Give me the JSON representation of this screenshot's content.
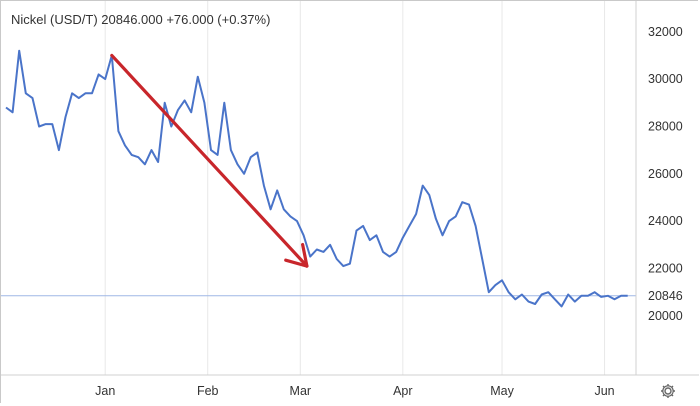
{
  "header": {
    "title": "Nickel (USD/T) 20846.000  +76.000 (+0.37%)"
  },
  "settings_icon": "gear-icon",
  "chart_data": {
    "type": "line",
    "title": "Nickel (USD/T) 20846.000  +76.000 (+0.37%)",
    "xlabel": "",
    "ylabel": "",
    "ylim": [
      17500,
      33300
    ],
    "y_ticks": [
      20000,
      22000,
      24000,
      26000,
      28000,
      30000,
      32000
    ],
    "y_tick_labels": [
      "20000",
      "22000",
      "24000",
      "26000",
      "28000",
      "30000",
      "32000"
    ],
    "x_ticks": [
      {
        "x": 30,
        "label": "Jan"
      },
      {
        "x": 61,
        "label": "Feb"
      },
      {
        "x": 89,
        "label": "Mar"
      },
      {
        "x": 120,
        "label": "Apr"
      },
      {
        "x": 150,
        "label": "May"
      },
      {
        "x": 181,
        "label": "Jun"
      }
    ],
    "xlim": [
      0,
      189
    ],
    "last_value": 20846,
    "last_value_label": "20846",
    "grid": "vertical",
    "colors": {
      "line": "#4a74c9",
      "arrow": "#c8262b",
      "hline": "#9fb7e6",
      "grid": "#e8e8e8"
    },
    "series": [
      {
        "x": [
          0,
          2,
          4,
          6,
          8,
          10,
          12,
          14,
          16,
          18,
          20,
          22,
          24,
          26,
          28,
          30,
          32,
          34,
          36,
          38,
          40,
          42,
          44,
          46,
          48,
          50,
          52,
          54,
          56,
          58,
          60,
          62,
          64,
          66,
          68,
          70,
          72,
          74,
          76,
          78,
          80,
          82,
          84,
          86,
          88,
          90,
          92,
          94,
          96,
          98,
          100,
          102,
          104,
          106,
          108,
          110,
          112,
          114,
          116,
          118,
          120,
          122,
          124,
          126,
          128,
          130,
          132,
          134,
          136,
          138,
          140,
          142,
          144,
          146,
          148,
          150,
          152,
          154,
          156,
          158,
          160,
          162,
          164,
          166,
          168,
          170,
          172,
          174,
          176,
          178,
          180,
          182,
          184,
          186,
          188
        ],
        "values": [
          28800,
          28600,
          31200,
          29400,
          29200,
          28000,
          28100,
          28100,
          27000,
          28400,
          29400,
          29200,
          29400,
          29400,
          30200,
          30000,
          31000,
          27800,
          27200,
          26800,
          26700,
          26400,
          27000,
          26500,
          29000,
          28000,
          28700,
          29100,
          28600,
          30100,
          29000,
          27000,
          26800,
          29000,
          27000,
          26400,
          26000,
          26700,
          26900,
          25500,
          24500,
          25300,
          24500,
          24200,
          24000,
          23400,
          22500,
          22800,
          22700,
          23000,
          22400,
          22100,
          22200,
          23600,
          23800,
          23200,
          23400,
          22700,
          22500,
          22700,
          23300,
          23800,
          24300,
          25500,
          25100,
          24100,
          23400,
          24000,
          24200,
          24800,
          24700,
          23800,
          22400,
          21000,
          21300,
          21500,
          21000,
          20700,
          20900,
          20600,
          20500,
          20900,
          21000,
          20700,
          20400,
          20900,
          20600,
          20850,
          20846,
          21000,
          20800,
          20846,
          20700,
          20846,
          20846
        ]
      }
    ],
    "annotations": [
      {
        "type": "arrow",
        "from": {
          "x": 32,
          "y": 31000
        },
        "to": {
          "x": 91,
          "y": 22100
        }
      }
    ]
  }
}
